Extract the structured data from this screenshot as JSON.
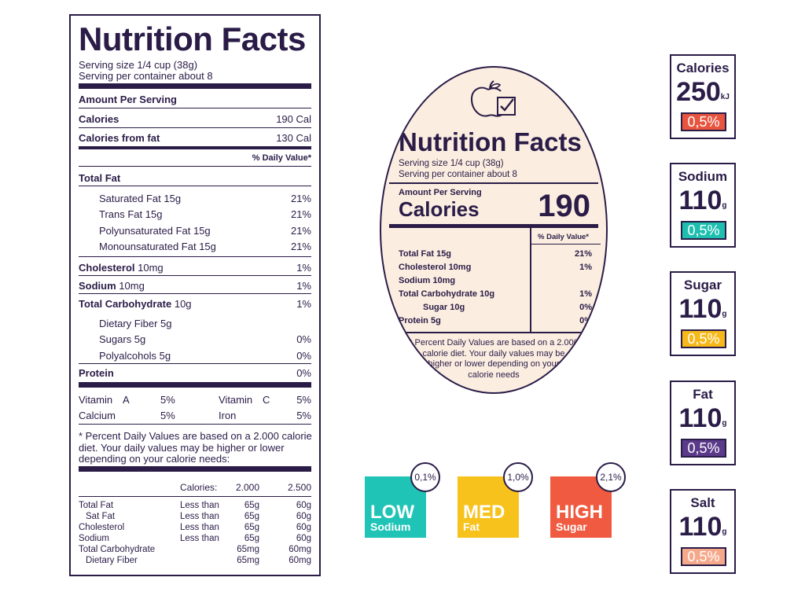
{
  "left_label": {
    "title": "Nutrition Facts",
    "serving_size": "Serving size 1/4 cup (38g)",
    "serving_per": "Serving per container about 8",
    "amount_per_serving": "Amount Per Serving",
    "calories": {
      "label": "Calories",
      "value": "190 Cal"
    },
    "calories_fat": {
      "label": "Calories from fat",
      "value": "130 Cal"
    },
    "daily_value_header": "% Daily Value*",
    "total_fat": "Total Fat",
    "fats": [
      {
        "label": "Saturated Fat 15g",
        "value": "21%"
      },
      {
        "label": "Trans Fat 15g",
        "value": "21%"
      },
      {
        "label": "Polyunsaturated Fat 15g",
        "value": "21%"
      },
      {
        "label": "Monounsaturated Fat 15g",
        "value": "21%"
      }
    ],
    "cholesterol": {
      "name": "Cholesterol",
      "amount": "10mg",
      "value": "1%"
    },
    "sodium": {
      "name": "Sodium",
      "amount": "10mg",
      "value": "1%"
    },
    "carb": {
      "name": "Total Carbohydrate",
      "amount": "10g",
      "value": "1%"
    },
    "carb_items": [
      {
        "label": "Dietary Fiber 5g",
        "value": ""
      },
      {
        "label": "Sugars 5g",
        "value": "0%"
      },
      {
        "label": "Polyalcohols 5g",
        "value": "0%"
      }
    ],
    "protein": {
      "label": "Protein",
      "value": "0%"
    },
    "vitamins": {
      "vit_a": "Vitamin",
      "vit_a_letter": "A",
      "vit_a_val": "5%",
      "vit_c": "Vitamin",
      "vit_c_letter": "C",
      "vit_c_val": "5%",
      "calcium": "Calcium",
      "calcium_val": "5%",
      "iron": "Iron",
      "iron_val": "5%"
    },
    "footnote": [
      "* Percent Daily Values are based on a 2.000 calorie",
      "diet. Your daily values may be higher or lower",
      "depending on your calorie needs:"
    ],
    "table_header": {
      "label": "Calories:",
      "c1": "2.000",
      "c2": "2.500"
    },
    "table_rows": [
      {
        "name": "Total Fat",
        "cond": "Less than",
        "c1": "65g",
        "c2": "60g"
      },
      {
        "name": "Sat Fat",
        "cond": "Less than",
        "c1": "65g",
        "c2": "60g"
      },
      {
        "name": "Cholesterol",
        "cond": "Less than",
        "c1": "65g",
        "c2": "60g"
      },
      {
        "name": "Sodium",
        "cond": "Less than",
        "c1": "65g",
        "c2": "60g"
      },
      {
        "name": "Total Carbohydrate",
        "cond": "",
        "c1": "65mg",
        "c2": "60mg"
      },
      {
        "name": "Dietary Fiber",
        "cond": "",
        "c1": "65mg",
        "c2": "60mg"
      }
    ]
  },
  "oval_label": {
    "title": "Nutrition Facts",
    "serving_size": "Serving size 1/4 cup (38g)",
    "serving_per": "Serving per container about 8",
    "amount_per_serving": "Amount Per Serving",
    "calories_label": "Calories",
    "calories_value": "190",
    "daily_value_header": "% Daily Value*",
    "rows": [
      {
        "label": "Total Fat 15g",
        "value": "21%"
      },
      {
        "label": "Cholesterol 10mg",
        "value": "1%"
      },
      {
        "label": "Sodium 10mg",
        "value": ""
      },
      {
        "label": "Total Carbohydrate 10g",
        "value": "1%"
      },
      {
        "label": "Sugar 10g",
        "value": "0%"
      },
      {
        "label": "Protein 5g",
        "value": "0%"
      }
    ],
    "footnote": [
      "* Percent Daily Values are based on a 2.000",
      "calorie diet. Your daily values may be",
      "higher or lower depending on your",
      "calorie needs"
    ],
    "icon": "apple-checkbox-icon"
  },
  "badges": [
    {
      "label": "Calories",
      "value": "250",
      "unit": "kJ",
      "percent": "0,5%",
      "color": "#e8553f"
    },
    {
      "label": "Sodium",
      "value": "110",
      "unit": "g",
      "percent": "0,5%",
      "color": "#1fbfb0"
    },
    {
      "label": "Sugar",
      "value": "110",
      "unit": "g",
      "percent": "0,5%",
      "color": "#f7b91a"
    },
    {
      "label": "Fat",
      "value": "110",
      "unit": "g",
      "percent": "0,5%",
      "color": "#5b3a8a"
    },
    {
      "label": "Salt",
      "value": "110",
      "unit": "g",
      "percent": "0,5%",
      "color": "#f6a98a"
    }
  ],
  "levels": [
    {
      "level": "LOW",
      "nutrient": "Sodium",
      "percent": "0,1%",
      "color": "#1fc4b7"
    },
    {
      "level": "MED",
      "nutrient": "Fat",
      "percent": "1,0%",
      "color": "#f7c21c"
    },
    {
      "level": "HIGH",
      "nutrient": "Sugar",
      "percent": "2,1%",
      "color": "#f05a40"
    }
  ]
}
